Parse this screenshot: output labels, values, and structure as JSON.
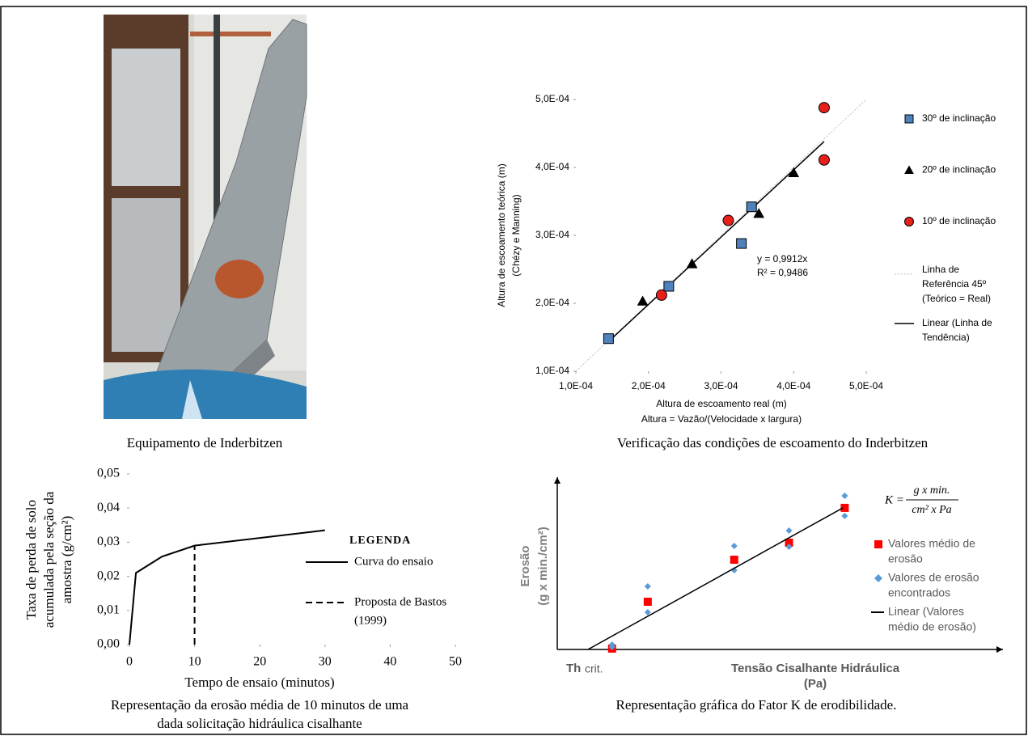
{
  "photo": {
    "caption": "Equipamento de Inderbitzen"
  },
  "chart_data": [
    {
      "type": "scatter",
      "ylabel": [
        "Altura de escoamento teórica (m)",
        "(Chézy e Manning)"
      ],
      "xlabel": [
        "Altura de escoamento real (m)",
        "Altura = Vazão/(Velocidade x largura)"
      ],
      "caption": [
        "Verificação das condições de escoamento do Inderbitzen"
      ],
      "xlim": [
        0.0001,
        0.0005
      ],
      "ylim": [
        0.0001,
        0.0005
      ],
      "xticks": [
        {
          "value": 0.0001,
          "label": "1,0E-04"
        },
        {
          "value": 0.0002,
          "label": "2,0E-04"
        },
        {
          "value": 0.0003,
          "label": "3,0E-04"
        },
        {
          "value": 0.0004,
          "label": "4,0E-04"
        },
        {
          "value": 0.0005,
          "label": "5,0E-04"
        }
      ],
      "yticks": [
        {
          "value": 0.0001,
          "label": "1,0E-04"
        },
        {
          "value": 0.0002,
          "label": "2,0E-04"
        },
        {
          "value": 0.0003,
          "label": "3,0E-04"
        },
        {
          "value": 0.0004,
          "label": "4,0E-04"
        },
        {
          "value": 0.0005,
          "label": "5,0E-04"
        }
      ],
      "series": [
        {
          "name": "30º de inclinação",
          "marker": "square",
          "color": "#4f81bd",
          "x": [
            0.000145,
            0.000228,
            0.000328,
            0.000342
          ],
          "values": [
            0.000148,
            0.000225,
            0.000288,
            0.000342
          ]
        },
        {
          "name": "20º de inclinação",
          "marker": "triangle",
          "color": "#000000",
          "x": [
            0.000192,
            0.00026,
            0.000352,
            0.0004
          ],
          "values": [
            0.000203,
            0.000258,
            0.000332,
            0.000392
          ]
        },
        {
          "name": "10º de inclinação",
          "marker": "circle",
          "color": "#e8201c",
          "x": [
            0.000218,
            0.00031,
            0.000442,
            0.000442
          ],
          "values": [
            0.000212,
            0.000322,
            0.000488,
            0.000411
          ]
        }
      ],
      "reference_line": {
        "name": [
          "Linha de",
          "Referência 45º",
          "(Teórico = Real)"
        ],
        "color": "#bfbfbf"
      },
      "trendline": {
        "name": [
          "Linear (Linha de",
          "Tendência)"
        ],
        "color": "#000000",
        "slope": {
          "value": 0.9912,
          "label": "y = 0,9912x"
        },
        "r2": {
          "value": 0.9486,
          "label": "R² = 0,9486"
        }
      }
    },
    {
      "type": "line",
      "ylabel": [
        "Taxa de perda de solo",
        "acumulada pela seção da",
        "amostra (g/cm²)"
      ],
      "xlabel": [
        "Tempo de ensaio (minutos)"
      ],
      "caption": [
        "Representação da erosão média de 10 minutos de uma",
        "dada solicitação hidráulica cisalhante"
      ],
      "legend_title": "LEGENDA",
      "xlim": [
        0,
        50
      ],
      "ylim": [
        0,
        0.05
      ],
      "xticks": [
        0,
        10,
        20,
        30,
        40,
        50
      ],
      "yticks": [
        {
          "value": 0,
          "label": "0,00"
        },
        {
          "value": 0.01,
          "label": "0,01"
        },
        {
          "value": 0.02,
          "label": "0,02"
        },
        {
          "value": 0.03,
          "label": "0,03"
        },
        {
          "value": 0.04,
          "label": "0,04"
        },
        {
          "value": 0.05,
          "label": "0,05"
        }
      ],
      "series": [
        {
          "name": [
            "Curva do ensaio"
          ],
          "color": "#000000",
          "dashed": false,
          "x": [
            0,
            1,
            5,
            10,
            30
          ],
          "values": [
            0,
            0.021,
            0.0258,
            0.029,
            0.0335
          ]
        },
        {
          "name": [
            "Proposta de Bastos",
            "(1999)"
          ],
          "color": "#000000",
          "dashed": true,
          "x": [
            10,
            10
          ],
          "values": [
            0,
            0.029
          ]
        }
      ]
    },
    {
      "type": "scatter",
      "ylabel": [
        "Erosão",
        "(g x min./cm²)"
      ],
      "xlabel": [
        "Tensão Cisalhante Hidráulica",
        "(Pa)"
      ],
      "x_origin_label": {
        "symbol": "Th",
        "subscript": "crit."
      },
      "formula": {
        "lhs": "K =",
        "numerator": "g x min.",
        "denominator": "cm² x Pa"
      },
      "caption": [
        "Representação gráfica do Fator K de erodibilidade."
      ],
      "xlim": [
        0,
        100
      ],
      "ylim": [
        0,
        100
      ],
      "series": [
        {
          "name": [
            "Valores médio de",
            "erosão"
          ],
          "marker": "square",
          "color": "#ff0000",
          "x": [
            12.3,
            20.3,
            39.7,
            52.0,
            64.5
          ],
          "values": [
            0.5,
            27.7,
            52.1,
            62.0,
            82.2
          ]
        },
        {
          "name": [
            "Valores de erosão",
            "encontrados"
          ],
          "marker": "diamond",
          "color": "#5b9bd5",
          "x": [
            12.3,
            12.3,
            20.3,
            20.3,
            39.7,
            39.7,
            52.0,
            52.0,
            64.5,
            64.5
          ],
          "values": [
            2.8,
            1.4,
            36.6,
            21.6,
            60.1,
            46.0,
            69.0,
            59.6,
            89.2,
            77.5
          ]
        },
        {
          "name": [
            "Linear (Valores",
            "médio de erosão)"
          ],
          "marker": "line",
          "color": "#000000",
          "x": [
            6.9,
            64.1
          ],
          "values": [
            0,
            82.2
          ]
        }
      ]
    }
  ]
}
